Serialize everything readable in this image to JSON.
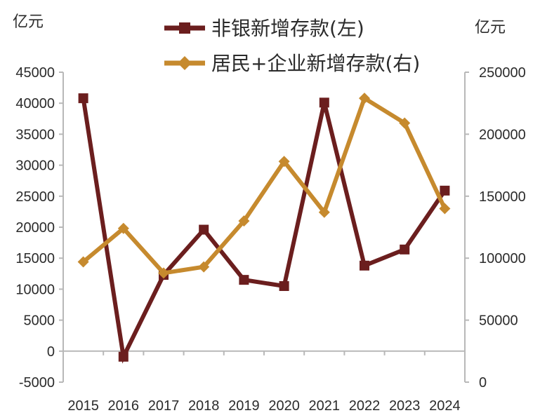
{
  "chart_data": {
    "type": "line",
    "x": [
      "2015",
      "2016",
      "2017",
      "2018",
      "2019",
      "2020",
      "2021",
      "2022",
      "2023",
      "2024"
    ],
    "left_axis": {
      "unit": "亿元",
      "ylim": [
        -5000,
        45000
      ],
      "ticks": [
        -5000,
        0,
        5000,
        10000,
        15000,
        20000,
        25000,
        30000,
        35000,
        40000,
        45000
      ]
    },
    "right_axis": {
      "unit": "亿元",
      "ylim": [
        0,
        250000
      ],
      "ticks": [
        0,
        50000,
        100000,
        150000,
        200000,
        250000
      ]
    },
    "series": [
      {
        "name": "非银新增存款(左)",
        "axis": "left",
        "marker": "square",
        "color": "#6b1e1e",
        "values": [
          40800,
          -900,
          12300,
          19600,
          11500,
          10500,
          40100,
          13800,
          16400,
          25900
        ]
      },
      {
        "name": "居民+企业新增存款(右)",
        "axis": "right",
        "marker": "diamond",
        "color": "#c68a2e",
        "values": [
          97000,
          124000,
          88000,
          93000,
          130000,
          178000,
          137000,
          229000,
          209000,
          140000
        ]
      }
    ],
    "legend_position": "top",
    "grid": false
  }
}
